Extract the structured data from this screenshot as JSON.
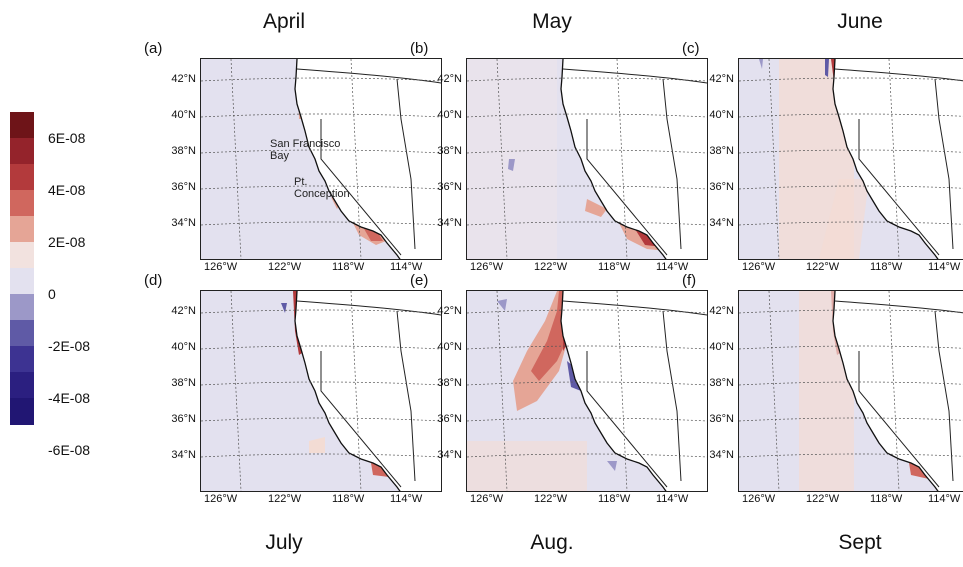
{
  "legend": {
    "ticks": [
      "6E-08",
      "4E-08",
      "2E-08",
      "0",
      "-2E-08",
      "-4E-08",
      "-6E-08"
    ],
    "colors": [
      "#6e1418",
      "#94232b",
      "#b33a3c",
      "#d0675e",
      "#e5a596",
      "#f2e2df",
      "#e3e1ef",
      "#9c98c8",
      "#5f5aa6",
      "#3d3392",
      "#2b1f80",
      "#211673"
    ]
  },
  "months_top": [
    "April",
    "May",
    "June"
  ],
  "months_bottom": [
    "July",
    "Aug.",
    "Sept"
  ],
  "panels": [
    {
      "label": "(a)"
    },
    {
      "label": "(b)"
    },
    {
      "label": "(c)"
    },
    {
      "label": "(d)"
    },
    {
      "label": "(e)"
    },
    {
      "label": "(f)"
    }
  ],
  "lat_labels": [
    "42°N",
    "40°N",
    "38°N",
    "36°N",
    "34°N"
  ],
  "lon_labels": [
    "126°W",
    "122°W",
    "118°W",
    "114°W"
  ],
  "annotations": {
    "sf": "San Francisco\nBay",
    "pc": "Pt.\nConception"
  }
}
